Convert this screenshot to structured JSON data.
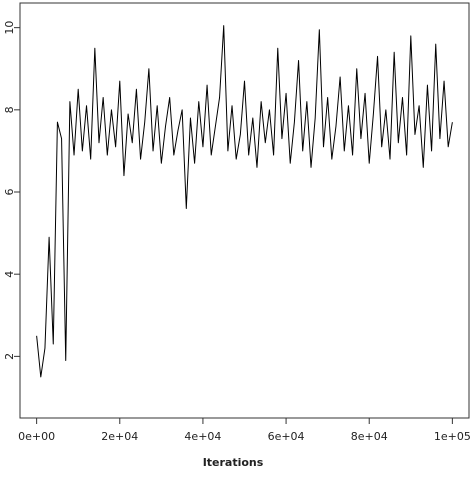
{
  "chart_data": {
    "type": "line",
    "xlabel": "Iterations",
    "x": [
      0,
      1000,
      2000,
      3000,
      4000,
      5000,
      6000,
      7000,
      8000,
      9000,
      10000,
      11000,
      12000,
      13000,
      14000,
      15000,
      16000,
      17000,
      18000,
      19000,
      20000,
      21000,
      22000,
      23000,
      24000,
      25000,
      26000,
      27000,
      28000,
      29000,
      30000,
      31000,
      32000,
      33000,
      34000,
      35000,
      36000,
      37000,
      38000,
      39000,
      40000,
      41000,
      42000,
      43000,
      44000,
      45000,
      46000,
      47000,
      48000,
      49000,
      50000,
      51000,
      52000,
      53000,
      54000,
      55000,
      56000,
      57000,
      58000,
      59000,
      60000,
      61000,
      62000,
      63000,
      64000,
      65000,
      66000,
      67000,
      68000,
      69000,
      70000,
      71000,
      72000,
      73000,
      74000,
      75000,
      76000,
      77000,
      78000,
      79000,
      80000,
      81000,
      82000,
      83000,
      84000,
      85000,
      86000,
      87000,
      88000,
      89000,
      90000,
      91000,
      92000,
      93000,
      94000,
      95000,
      96000,
      97000,
      98000,
      99000,
      100000
    ],
    "values": [
      2.5,
      1.5,
      2.2,
      4.9,
      2.3,
      7.7,
      7.3,
      1.9,
      8.2,
      6.9,
      8.5,
      7.0,
      8.1,
      6.8,
      9.5,
      7.2,
      8.3,
      6.9,
      8.0,
      7.1,
      8.7,
      6.4,
      7.9,
      7.2,
      8.5,
      6.8,
      7.7,
      9.0,
      7.0,
      8.1,
      6.7,
      7.6,
      8.3,
      6.9,
      7.5,
      8.0,
      5.6,
      7.8,
      6.7,
      8.2,
      7.1,
      8.6,
      6.9,
      7.6,
      8.3,
      10.05,
      7.0,
      8.1,
      6.8,
      7.4,
      8.7,
      6.9,
      7.8,
      6.6,
      8.2,
      7.2,
      8.0,
      6.9,
      9.5,
      7.3,
      8.4,
      6.7,
      7.7,
      9.2,
      7.0,
      8.2,
      6.6,
      7.8,
      9.95,
      7.1,
      8.3,
      6.8,
      7.6,
      8.8,
      7.0,
      8.1,
      6.9,
      9.0,
      7.3,
      8.4,
      6.7,
      7.9,
      9.3,
      7.1,
      8.0,
      6.8,
      9.4,
      7.2,
      8.3,
      6.9,
      9.8,
      7.4,
      8.1,
      6.6,
      8.6,
      7.0,
      9.6,
      7.3,
      8.7,
      7.1,
      7.7
    ],
    "color": "#000000",
    "xlim": [
      -4000,
      104000
    ],
    "xticks": [
      {
        "value": 0,
        "label": "0e+00"
      },
      {
        "value": 20000,
        "label": "2e+04"
      },
      {
        "value": 40000,
        "label": "4e+04"
      },
      {
        "value": 60000,
        "label": "6e+04"
      },
      {
        "value": 80000,
        "label": "8e+04"
      },
      {
        "value": 100000,
        "label": "1e+05"
      }
    ],
    "ylim": [
      0.5,
      10.6
    ],
    "yticks": [
      2,
      4,
      6,
      8,
      10
    ]
  }
}
